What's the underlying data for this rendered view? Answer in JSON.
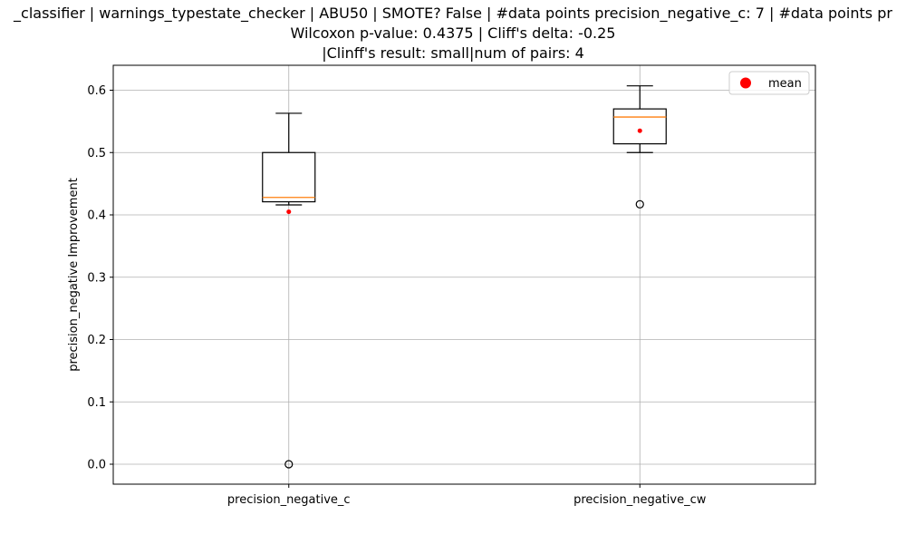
{
  "chart_data": {
    "type": "box",
    "title_lines": [
      "_classifier | warnings_typestate_checker | ABU50 | SMOTE? False | #data points precision_negative_c: 7 | #data points pr",
      "Wilcoxon p-value: 0.4375 | Cliff's delta: -0.25",
      "|Clinff's result: small|num of pairs: 4"
    ],
    "xlabel": "",
    "ylabel": "precision_negative Improvement",
    "ylim": [
      -0.032,
      0.64
    ],
    "yticks": [
      0.0,
      0.1,
      0.2,
      0.3,
      0.4,
      0.5,
      0.6
    ],
    "ytick_labels": [
      "0.0",
      "0.1",
      "0.2",
      "0.3",
      "0.4",
      "0.5",
      "0.6"
    ],
    "grid": true,
    "legend": {
      "placement": "top-right",
      "entries": [
        {
          "label": "mean",
          "color": "#ff0000",
          "marker": "circle"
        }
      ]
    },
    "colors": {
      "box": "#000000",
      "median": "#ff7f0e",
      "mean": "#ff0000",
      "grid": "#b0b0b0"
    },
    "series": [
      {
        "category": "precision_negative_c",
        "whisker_low": 0.416,
        "q1": 0.421,
        "median": 0.428,
        "q3": 0.5,
        "whisker_high": 0.563,
        "mean": 0.405,
        "outliers": [
          0.0
        ]
      },
      {
        "category": "precision_negative_cw",
        "whisker_low": 0.5,
        "q1": 0.514,
        "median": 0.557,
        "q3": 0.57,
        "whisker_high": 0.607,
        "mean": 0.535,
        "outliers": [
          0.417
        ]
      }
    ]
  }
}
